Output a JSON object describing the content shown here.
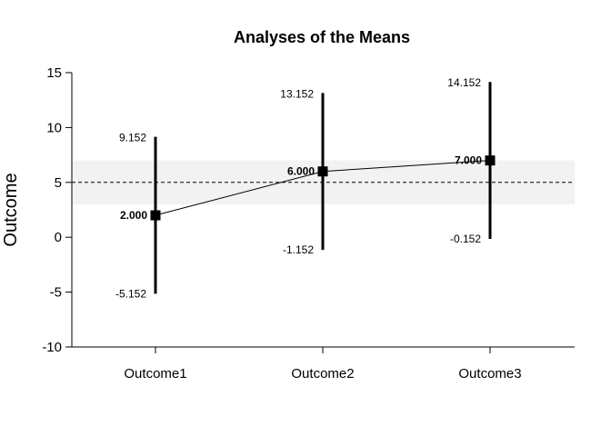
{
  "chart_data": {
    "type": "line",
    "title": "Analyses of the Means",
    "xlabel": "",
    "ylabel": "Outcome",
    "categories": [
      "Outcome1",
      "Outcome2",
      "Outcome3"
    ],
    "series": [
      {
        "values": [
          2.0,
          6.0,
          7.0
        ],
        "lower": [
          -5.152,
          -1.152,
          -0.152
        ],
        "upper": [
          9.152,
          13.152,
          14.152
        ],
        "mean_labels": [
          "2.000",
          "6.000",
          "7.000"
        ],
        "lower_labels": [
          "-5.152",
          "-1.152",
          "-0.152"
        ],
        "upper_labels": [
          "9.152",
          "13.152",
          "14.152"
        ]
      }
    ],
    "reference_line": 5,
    "reference_band": [
      3,
      7
    ],
    "ylim": [
      -10,
      15
    ],
    "yticks": [
      -10,
      -5,
      0,
      5,
      10,
      15
    ],
    "grid": false,
    "colors": {
      "band": "#f2f2f2",
      "marks": "#000000"
    }
  }
}
